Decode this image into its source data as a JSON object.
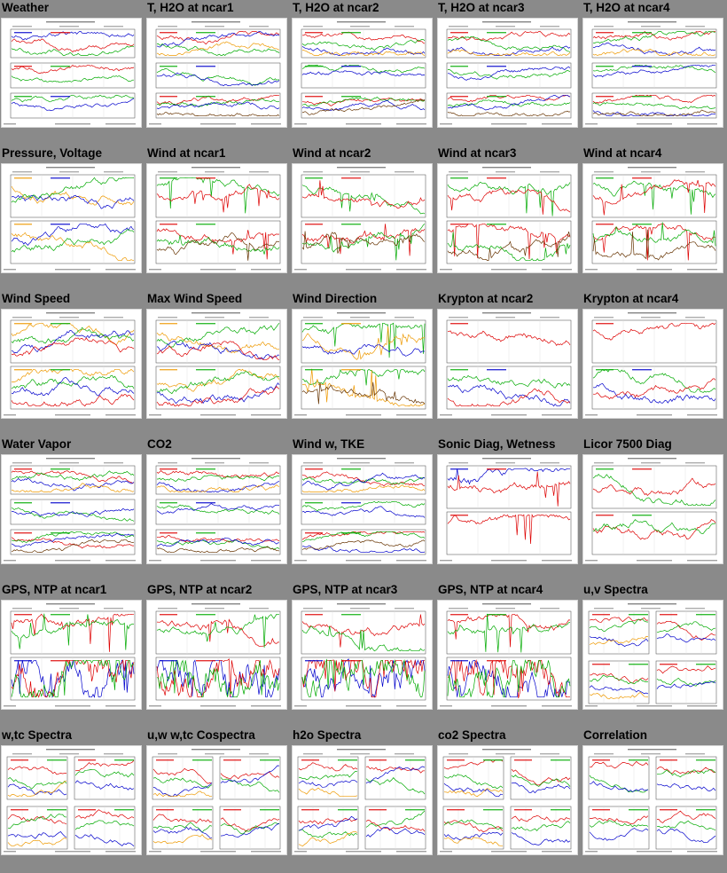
{
  "colors": {
    "background": "#8a8a8a",
    "thumb_bg": "#ffffff"
  },
  "rows": [
    {
      "cells": [
        {
          "title": "Weather",
          "kind": "weather"
        },
        {
          "title": "T, H2O at ncar1",
          "kind": "th2o"
        },
        {
          "title": "T, H2O at ncar2",
          "kind": "th2o"
        },
        {
          "title": "T, H2O at ncar3",
          "kind": "th2o"
        },
        {
          "title": "T, H2O at ncar4",
          "kind": "th2o"
        }
      ]
    },
    {
      "cells": [
        {
          "title": "Pressure, Voltage",
          "kind": "pressure"
        },
        {
          "title": "Wind at ncar1",
          "kind": "wind"
        },
        {
          "title": "Wind at ncar2",
          "kind": "wind"
        },
        {
          "title": "Wind at ncar3",
          "kind": "wind"
        },
        {
          "title": "Wind at ncar4",
          "kind": "wind"
        }
      ]
    },
    {
      "cells": [
        {
          "title": "Wind Speed",
          "kind": "wspd"
        },
        {
          "title": "Max Wind Speed",
          "kind": "wspd"
        },
        {
          "title": "Wind Direction",
          "kind": "wdir"
        },
        {
          "title": "Krypton at ncar2",
          "kind": "krypton"
        },
        {
          "title": "Krypton at ncar4",
          "kind": "krypton"
        }
      ]
    },
    {
      "cells": [
        {
          "title": "Water Vapor",
          "kind": "th2o"
        },
        {
          "title": "CO2",
          "kind": "th2o"
        },
        {
          "title": "Wind w, TKE",
          "kind": "th2o"
        },
        {
          "title": "Sonic Diag, Wetness",
          "kind": "sonic"
        },
        {
          "title": "Licor 7500 Diag",
          "kind": "licor"
        }
      ]
    },
    {
      "cells": [
        {
          "title": "GPS, NTP at ncar1",
          "kind": "gps"
        },
        {
          "title": "GPS, NTP at ncar2",
          "kind": "gps"
        },
        {
          "title": "GPS, NTP at ncar3",
          "kind": "gps"
        },
        {
          "title": "GPS, NTP at ncar4",
          "kind": "gps"
        },
        {
          "title": "u,v Spectra",
          "kind": "spectra"
        }
      ]
    },
    {
      "cells": [
        {
          "title": "w,tc Spectra",
          "kind": "spectra"
        },
        {
          "title": "u,w w,tc Cospectra",
          "kind": "spectra"
        },
        {
          "title": "h2o Spectra",
          "kind": "spectra"
        },
        {
          "title": "co2 Spectra",
          "kind": "spectra"
        },
        {
          "title": "Correlation",
          "kind": "correlation"
        }
      ]
    }
  ]
}
